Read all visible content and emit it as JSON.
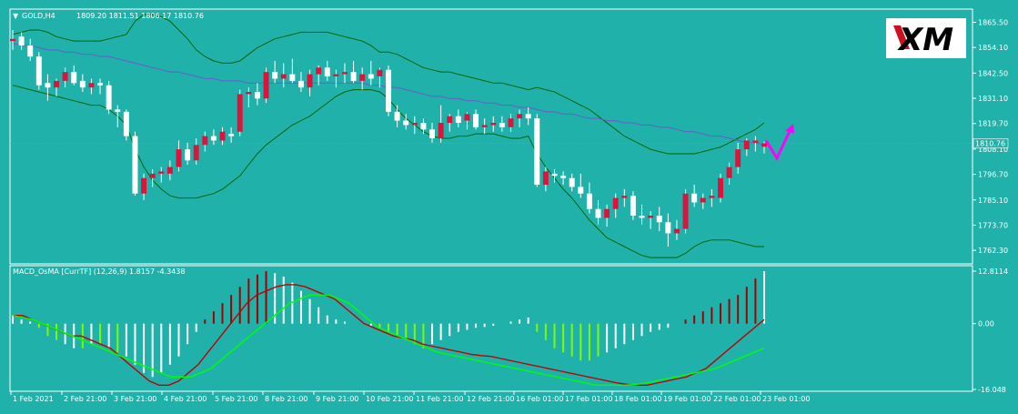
{
  "chart_data": [
    {
      "type": "candlestick",
      "symbol_label": "GOLD,H4",
      "ohlc_label": "1809.20 1811.51 1806.17 1810.76",
      "current_price_label": "1810.76",
      "ylim": [
        1757,
        1869
      ],
      "y_ticks": [
        1865.5,
        1854.1,
        1842.5,
        1831.1,
        1819.7,
        1808.1,
        1796.7,
        1785.1,
        1773.7,
        1762.3
      ],
      "current_price": 1810.76,
      "candles": [
        {
          "o": 1857,
          "h": 1862,
          "l": 1853,
          "c": 1858
        },
        {
          "o": 1859,
          "h": 1861,
          "l": 1853,
          "c": 1855
        },
        {
          "o": 1855,
          "h": 1858,
          "l": 1848,
          "c": 1850
        },
        {
          "o": 1850,
          "h": 1852,
          "l": 1835,
          "c": 1837
        },
        {
          "o": 1838,
          "h": 1842,
          "l": 1830,
          "c": 1836
        },
        {
          "o": 1836,
          "h": 1840,
          "l": 1832,
          "c": 1839
        },
        {
          "o": 1839,
          "h": 1845,
          "l": 1836,
          "c": 1843
        },
        {
          "o": 1843,
          "h": 1846,
          "l": 1837,
          "c": 1838
        },
        {
          "o": 1839,
          "h": 1842,
          "l": 1834,
          "c": 1836
        },
        {
          "o": 1836,
          "h": 1840,
          "l": 1833,
          "c": 1838
        },
        {
          "o": 1838,
          "h": 1840,
          "l": 1833,
          "c": 1837
        },
        {
          "o": 1837,
          "h": 1839,
          "l": 1824,
          "c": 1826
        },
        {
          "o": 1826,
          "h": 1828,
          "l": 1818,
          "c": 1825
        },
        {
          "o": 1825,
          "h": 1826,
          "l": 1812,
          "c": 1814
        },
        {
          "o": 1814,
          "h": 1816,
          "l": 1787,
          "c": 1788
        },
        {
          "o": 1788,
          "h": 1797,
          "l": 1785,
          "c": 1795
        },
        {
          "o": 1795,
          "h": 1799,
          "l": 1791,
          "c": 1797
        },
        {
          "o": 1797,
          "h": 1800,
          "l": 1793,
          "c": 1798
        },
        {
          "o": 1797,
          "h": 1803,
          "l": 1794,
          "c": 1800
        },
        {
          "o": 1800,
          "h": 1812,
          "l": 1798,
          "c": 1808
        },
        {
          "o": 1808,
          "h": 1811,
          "l": 1801,
          "c": 1803
        },
        {
          "o": 1803,
          "h": 1813,
          "l": 1801,
          "c": 1810
        },
        {
          "o": 1810,
          "h": 1816,
          "l": 1807,
          "c": 1814
        },
        {
          "o": 1814,
          "h": 1817,
          "l": 1810,
          "c": 1812
        },
        {
          "o": 1812,
          "h": 1818,
          "l": 1810,
          "c": 1816
        },
        {
          "o": 1815,
          "h": 1818,
          "l": 1811,
          "c": 1814
        },
        {
          "o": 1816,
          "h": 1835,
          "l": 1814,
          "c": 1833
        },
        {
          "o": 1833,
          "h": 1836,
          "l": 1827,
          "c": 1834
        },
        {
          "o": 1834,
          "h": 1838,
          "l": 1828,
          "c": 1831
        },
        {
          "o": 1831,
          "h": 1845,
          "l": 1829,
          "c": 1843
        },
        {
          "o": 1843,
          "h": 1848,
          "l": 1838,
          "c": 1840
        },
        {
          "o": 1840,
          "h": 1847,
          "l": 1836,
          "c": 1842
        },
        {
          "o": 1842,
          "h": 1849,
          "l": 1838,
          "c": 1839
        },
        {
          "o": 1839,
          "h": 1843,
          "l": 1834,
          "c": 1836
        },
        {
          "o": 1836,
          "h": 1844,
          "l": 1832,
          "c": 1842
        },
        {
          "o": 1842,
          "h": 1846,
          "l": 1837,
          "c": 1845
        },
        {
          "o": 1845,
          "h": 1848,
          "l": 1839,
          "c": 1841
        },
        {
          "o": 1841,
          "h": 1844,
          "l": 1836,
          "c": 1842
        },
        {
          "o": 1842,
          "h": 1847,
          "l": 1838,
          "c": 1843
        },
        {
          "o": 1843,
          "h": 1848,
          "l": 1838,
          "c": 1839
        },
        {
          "o": 1839,
          "h": 1845,
          "l": 1835,
          "c": 1842
        },
        {
          "o": 1842,
          "h": 1848,
          "l": 1837,
          "c": 1840
        },
        {
          "o": 1841,
          "h": 1845,
          "l": 1836,
          "c": 1844
        },
        {
          "o": 1844,
          "h": 1846,
          "l": 1823,
          "c": 1825
        },
        {
          "o": 1825,
          "h": 1828,
          "l": 1818,
          "c": 1821
        },
        {
          "o": 1821,
          "h": 1824,
          "l": 1817,
          "c": 1819
        },
        {
          "o": 1819,
          "h": 1823,
          "l": 1815,
          "c": 1820
        },
        {
          "o": 1820,
          "h": 1822,
          "l": 1815,
          "c": 1817
        },
        {
          "o": 1817,
          "h": 1820,
          "l": 1811,
          "c": 1813
        },
        {
          "o": 1813,
          "h": 1828,
          "l": 1811,
          "c": 1820
        },
        {
          "o": 1820,
          "h": 1824,
          "l": 1816,
          "c": 1823
        },
        {
          "o": 1823,
          "h": 1826,
          "l": 1818,
          "c": 1820
        },
        {
          "o": 1821,
          "h": 1825,
          "l": 1817,
          "c": 1824
        },
        {
          "o": 1824,
          "h": 1826,
          "l": 1817,
          "c": 1818
        },
        {
          "o": 1818,
          "h": 1822,
          "l": 1815,
          "c": 1819
        },
        {
          "o": 1819,
          "h": 1823,
          "l": 1816,
          "c": 1820
        },
        {
          "o": 1820,
          "h": 1823,
          "l": 1816,
          "c": 1818
        },
        {
          "o": 1818,
          "h": 1824,
          "l": 1816,
          "c": 1822
        },
        {
          "o": 1822,
          "h": 1826,
          "l": 1818,
          "c": 1824
        },
        {
          "o": 1824,
          "h": 1827,
          "l": 1819,
          "c": 1822
        },
        {
          "o": 1822,
          "h": 1824,
          "l": 1791,
          "c": 1792
        },
        {
          "o": 1792,
          "h": 1800,
          "l": 1789,
          "c": 1798
        },
        {
          "o": 1797,
          "h": 1799,
          "l": 1793,
          "c": 1796
        },
        {
          "o": 1796,
          "h": 1798,
          "l": 1792,
          "c": 1795
        },
        {
          "o": 1795,
          "h": 1797,
          "l": 1789,
          "c": 1791
        },
        {
          "o": 1791,
          "h": 1797,
          "l": 1786,
          "c": 1788
        },
        {
          "o": 1788,
          "h": 1793,
          "l": 1779,
          "c": 1781
        },
        {
          "o": 1781,
          "h": 1785,
          "l": 1774,
          "c": 1777
        },
        {
          "o": 1777,
          "h": 1783,
          "l": 1773,
          "c": 1781
        },
        {
          "o": 1781,
          "h": 1788,
          "l": 1777,
          "c": 1786
        },
        {
          "o": 1786,
          "h": 1790,
          "l": 1782,
          "c": 1787
        },
        {
          "o": 1787,
          "h": 1789,
          "l": 1776,
          "c": 1778
        },
        {
          "o": 1778,
          "h": 1783,
          "l": 1774,
          "c": 1777
        },
        {
          "o": 1777,
          "h": 1780,
          "l": 1772,
          "c": 1778
        },
        {
          "o": 1778,
          "h": 1782,
          "l": 1771,
          "c": 1775
        },
        {
          "o": 1775,
          "h": 1779,
          "l": 1764,
          "c": 1770
        },
        {
          "o": 1770,
          "h": 1776,
          "l": 1767,
          "c": 1772
        },
        {
          "o": 1772,
          "h": 1790,
          "l": 1770,
          "c": 1788
        },
        {
          "o": 1788,
          "h": 1792,
          "l": 1782,
          "c": 1784
        },
        {
          "o": 1784,
          "h": 1788,
          "l": 1781,
          "c": 1786
        },
        {
          "o": 1786,
          "h": 1790,
          "l": 1782,
          "c": 1787
        },
        {
          "o": 1786,
          "h": 1797,
          "l": 1784,
          "c": 1795
        },
        {
          "o": 1795,
          "h": 1802,
          "l": 1792,
          "c": 1800
        },
        {
          "o": 1800,
          "h": 1811,
          "l": 1797,
          "c": 1808
        },
        {
          "o": 1808,
          "h": 1813,
          "l": 1805,
          "c": 1812
        },
        {
          "o": 1811,
          "h": 1814,
          "l": 1807,
          "c": 1812
        },
        {
          "o": 1809.2,
          "h": 1811.51,
          "l": 1806.17,
          "c": 1810.76
        }
      ],
      "bollinger_upper": [
        1860,
        1861,
        1862,
        1862,
        1861,
        1859,
        1858,
        1857,
        1857,
        1857,
        1857,
        1858,
        1859,
        1860,
        1866,
        1869,
        1869,
        1868,
        1866,
        1862,
        1858,
        1853,
        1850,
        1848,
        1847,
        1847,
        1848,
        1851,
        1854,
        1856,
        1858,
        1859,
        1860,
        1861,
        1861,
        1861,
        1861,
        1860,
        1859,
        1858,
        1857,
        1855,
        1852,
        1852,
        1851,
        1849,
        1847,
        1845,
        1844,
        1843,
        1843,
        1842,
        1841,
        1840,
        1839,
        1838,
        1838,
        1837,
        1836,
        1835,
        1836,
        1835,
        1834,
        1832,
        1830,
        1828,
        1826,
        1823,
        1820,
        1817,
        1814,
        1812,
        1810,
        1808,
        1807,
        1806,
        1806,
        1806,
        1806,
        1807,
        1808,
        1809,
        1811,
        1813,
        1815,
        1817,
        1820
      ],
      "bollinger_lower": [
        1837,
        1836,
        1835,
        1834,
        1833,
        1832,
        1831,
        1830,
        1829,
        1828,
        1828,
        1826,
        1823,
        1819,
        1808,
        1800,
        1794,
        1790,
        1787,
        1786,
        1786,
        1786,
        1787,
        1788,
        1790,
        1793,
        1796,
        1801,
        1806,
        1810,
        1813,
        1816,
        1819,
        1821,
        1823,
        1826,
        1829,
        1832,
        1834,
        1835,
        1835,
        1835,
        1834,
        1831,
        1826,
        1822,
        1819,
        1816,
        1814,
        1813,
        1813,
        1814,
        1814,
        1815,
        1815,
        1815,
        1814,
        1813,
        1813,
        1814,
        1806,
        1800,
        1795,
        1790,
        1786,
        1781,
        1776,
        1772,
        1768,
        1766,
        1764,
        1762,
        1760,
        1759,
        1759,
        1759,
        1759,
        1761,
        1764,
        1766,
        1767,
        1767,
        1767,
        1766,
        1765,
        1764,
        1764
      ],
      "bollinger_middle": [
        1849,
        1849,
        1849,
        1849,
        1847,
        1846,
        1845,
        1844,
        1843,
        1843,
        1842,
        1842,
        1841,
        1839,
        1837,
        1835,
        1832,
        1829,
        1826,
        1824,
        1822,
        1820,
        1819,
        1818,
        1818,
        1819,
        1821,
        1825,
        1829,
        1833,
        1835,
        1837,
        1839,
        1841,
        1842,
        1844,
        1845,
        1846,
        1846,
        1846,
        1846,
        1845,
        1844,
        1841,
        1838,
        1835,
        1833,
        1831,
        1829,
        1828,
        1827,
        1827,
        1827,
        1827,
        1827,
        1827,
        1826,
        1825,
        1824,
        1824,
        1821,
        1818,
        1815,
        1812,
        1809,
        1806,
        1803,
        1800,
        1797,
        1794,
        1792,
        1790,
        1789,
        1787,
        1786,
        1785,
        1784,
        1784,
        1785,
        1786,
        1787,
        1788,
        1789,
        1790,
        1790,
        1790,
        1791
      ],
      "moving_average": [
        1856,
        1855,
        1855,
        1854,
        1853,
        1853,
        1852,
        1852,
        1851,
        1851,
        1850,
        1850,
        1849,
        1848,
        1847,
        1846,
        1845,
        1844,
        1843,
        1843,
        1842,
        1841,
        1840,
        1840,
        1839,
        1839,
        1839,
        1838,
        1838,
        1838,
        1838,
        1838,
        1838,
        1838,
        1838,
        1838,
        1838,
        1838,
        1838,
        1838,
        1838,
        1837,
        1837,
        1836,
        1836,
        1835,
        1834,
        1833,
        1832,
        1832,
        1831,
        1831,
        1830,
        1830,
        1829,
        1829,
        1828,
        1828,
        1827,
        1827,
        1826,
        1825,
        1825,
        1824,
        1824,
        1823,
        1822,
        1822,
        1821,
        1821,
        1820,
        1820,
        1819,
        1819,
        1818,
        1818,
        1817,
        1816,
        1816,
        1815,
        1814,
        1814,
        1813,
        1812,
        1811,
        1811,
        1810
      ],
      "projection": [
        [
          1812,
          1804,
          1818
        ]
      ],
      "x_labels": [
        "1 Feb 2021",
        "2 Feb 21:00",
        "3 Feb 21:00",
        "4 Feb 21:00",
        "5 Feb 21:00",
        "8 Feb 21:00",
        "9 Feb 21:00",
        "10 Feb 21:00",
        "11 Feb 21:00",
        "12 Feb 21:00",
        "16 Feb 01:00",
        "17 Feb 01:00",
        "18 Feb 01:00",
        "19 Feb 01:00",
        "22 Feb 01:00",
        "23 Feb 01:00"
      ]
    },
    {
      "type": "histogram-lines",
      "indicator_label": "MACD_OsMA [CurrTF] (12,26,9) 1.8157 -4.3438",
      "ylim": [
        -16.048,
        12.8114
      ],
      "y_ticks": [
        12.8114,
        0.0,
        -16.048
      ],
      "histogram": [
        2,
        1,
        0.5,
        -1,
        -3,
        -4,
        -5,
        -6,
        -6,
        -5,
        -5,
        -6,
        -7,
        -8,
        -10,
        -12,
        -13,
        -12,
        -10,
        -8,
        -5,
        -2,
        1,
        3,
        5,
        7,
        9,
        11,
        12,
        12.8,
        12.3,
        11.5,
        10,
        8,
        6,
        4,
        2,
        1,
        0.5,
        0,
        0,
        -0.5,
        -1,
        -2,
        -3,
        -4,
        -5,
        -6,
        -5,
        -4,
        -3,
        -2,
        -1.5,
        -1,
        -0.8,
        -0.5,
        0,
        0.5,
        1,
        1.5,
        -2,
        -4,
        -6,
        -7,
        -8,
        -9,
        -9,
        -8,
        -7,
        -6,
        -5,
        -4,
        -3,
        -2,
        -1.5,
        -1,
        0,
        1,
        2,
        3,
        4,
        5,
        6,
        7,
        9,
        11,
        12.8
      ],
      "hist_color": [
        "w",
        "w",
        "w",
        "g",
        "g",
        "g",
        "w",
        "w",
        "g",
        "w",
        "g",
        "w",
        "g",
        "w",
        "w",
        "w",
        "w",
        "w",
        "w",
        "w",
        "w",
        "w",
        "r",
        "r",
        "r",
        "r",
        "r",
        "r",
        "r",
        "r",
        "w",
        "w",
        "w",
        "w",
        "w",
        "w",
        "w",
        "w",
        "w",
        "w",
        "g",
        "w",
        "g",
        "g",
        "g",
        "g",
        "g",
        "g",
        "w",
        "w",
        "w",
        "w",
        "w",
        "w",
        "w",
        "w",
        "w",
        "w",
        "w",
        "w",
        "g",
        "g",
        "g",
        "g",
        "g",
        "g",
        "g",
        "g",
        "w",
        "w",
        "w",
        "w",
        "w",
        "w",
        "w",
        "w",
        "r",
        "r",
        "r",
        "r",
        "r",
        "r",
        "r",
        "r",
        "r",
        "r",
        "w"
      ],
      "macd_red": [
        2,
        2,
        1,
        0,
        -1,
        -2,
        -3,
        -3,
        -4,
        -5,
        -6,
        -8,
        -10,
        -12,
        -14,
        -15,
        -15,
        -14,
        -12,
        -10,
        -7,
        -4,
        -1,
        2,
        5,
        7,
        8,
        9,
        9.5,
        9.5,
        9,
        8,
        7,
        6,
        4,
        2,
        0,
        -1,
        -2,
        -3,
        -3.5,
        -4,
        -5,
        -5.5,
        -6,
        -6.5,
        -7,
        -7.5,
        -7.8,
        -8,
        -8.5,
        -9,
        -9.5,
        -10,
        -10.5,
        -11,
        -11.5,
        -12,
        -12.5,
        -13,
        -13.5,
        -14,
        -14.5,
        -14.8,
        -15,
        -15,
        -14.5,
        -14,
        -13.5,
        -13,
        -12,
        -11,
        -9,
        -7,
        -5,
        -3,
        -1,
        1
      ],
      "signal_green": [
        2,
        1.5,
        1,
        0,
        -1,
        -2,
        -3,
        -4,
        -5,
        -6,
        -7,
        -8,
        -9,
        -10,
        -11,
        -12,
        -13,
        -13,
        -13,
        -12,
        -11,
        -9,
        -7,
        -5,
        -3,
        -1,
        1,
        3,
        5,
        6,
        7,
        7,
        7,
        6,
        5,
        3,
        1,
        -1,
        -2,
        -3,
        -4,
        -5,
        -6,
        -7,
        -7.5,
        -8,
        -8.5,
        -9,
        -9.5,
        -10,
        -10.5,
        -11,
        -11.5,
        -12,
        -12.5,
        -13,
        -13.5,
        -14,
        -14.5,
        -15,
        -15,
        -15,
        -15,
        -14.8,
        -14.5,
        -14,
        -13.5,
        -13,
        -12.5,
        -12,
        -11.5,
        -11,
        -10,
        -9,
        -8,
        -7,
        -6
      ]
    }
  ],
  "brand": {
    "logo_text": "XM"
  },
  "colors": {
    "background": "#20b2aa",
    "bull_candle": "#dc143c",
    "bear_candle": "#ffffff",
    "bollinger": "#006400",
    "moving_average": "#6a5acd",
    "macd_line": "#c00000",
    "signal_line": "#00ff00",
    "hist_red": "#a00000",
    "hist_green": "#7cfc00",
    "hist_white": "#ffffff",
    "projection": "#ff00ff"
  }
}
